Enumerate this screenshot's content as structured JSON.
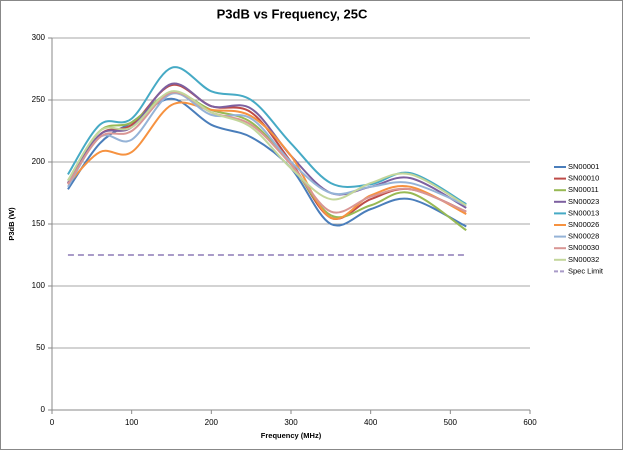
{
  "chart_data": {
    "type": "line",
    "title": "P3dB vs Frequency, 25C",
    "x_label": "Frequency (MHz)",
    "y_label": "P3dB (W)",
    "xlim": [
      0,
      600
    ],
    "xticks": [
      0,
      100,
      200,
      300,
      400,
      500,
      600
    ],
    "ylim": [
      0,
      300
    ],
    "yticks": [
      0,
      50,
      100,
      150,
      200,
      250,
      300
    ],
    "grid": true,
    "legend": "right",
    "smooth": true,
    "series": [
      {
        "name": "SN00001",
        "color": "#4A7EBB",
        "x": [
          20,
          60,
          100,
          150,
          200,
          250,
          300,
          350,
          400,
          450,
          520
        ],
        "values": [
          178,
          215,
          232,
          251,
          230,
          220,
          195,
          150,
          162,
          170,
          148
        ]
      },
      {
        "name": "SN00010",
        "color": "#BE4B48",
        "x": [
          20,
          60,
          100,
          150,
          200,
          250,
          300,
          350,
          400,
          450,
          520
        ],
        "values": [
          183,
          222,
          230,
          262,
          245,
          240,
          200,
          155,
          170,
          178,
          160
        ]
      },
      {
        "name": "SN00011",
        "color": "#98B954",
        "x": [
          20,
          60,
          100,
          150,
          200,
          250,
          300,
          350,
          400,
          450,
          520
        ],
        "values": [
          185,
          225,
          232,
          256,
          242,
          232,
          198,
          157,
          165,
          175,
          145
        ]
      },
      {
        "name": "SN00023",
        "color": "#7D60A0",
        "x": [
          20,
          60,
          100,
          150,
          200,
          250,
          300,
          350,
          400,
          450,
          520
        ],
        "values": [
          183,
          222,
          228,
          263,
          245,
          243,
          205,
          175,
          180,
          187,
          163
        ]
      },
      {
        "name": "SN00013",
        "color": "#46AAC5",
        "x": [
          20,
          60,
          100,
          150,
          200,
          250,
          300,
          350,
          400,
          450,
          520
        ],
        "values": [
          190,
          230,
          235,
          276,
          257,
          250,
          215,
          183,
          182,
          191,
          166
        ]
      },
      {
        "name": "SN00026",
        "color": "#F69240",
        "x": [
          20,
          60,
          100,
          150,
          200,
          250,
          300,
          350,
          400,
          450,
          520
        ],
        "values": [
          182,
          208,
          208,
          246,
          242,
          237,
          205,
          155,
          173,
          180,
          158
        ]
      },
      {
        "name": "SN00028",
        "color": "#95B3D7",
        "x": [
          20,
          60,
          100,
          150,
          200,
          250,
          300,
          350,
          400,
          450,
          520
        ],
        "values": [
          180,
          220,
          218,
          255,
          238,
          235,
          200,
          175,
          180,
          183,
          165
        ]
      },
      {
        "name": "SN00030",
        "color": "#D99694",
        "x": [
          20,
          60,
          100,
          150,
          200,
          250,
          300,
          350,
          400,
          450,
          520
        ],
        "values": [
          182,
          220,
          225,
          256,
          240,
          230,
          198,
          160,
          172,
          178,
          160
        ]
      },
      {
        "name": "SN00032",
        "color": "#C3D69B",
        "x": [
          20,
          60,
          100,
          150,
          200,
          250,
          300,
          350,
          400,
          450,
          520
        ],
        "values": [
          185,
          225,
          228,
          257,
          240,
          228,
          195,
          170,
          183,
          190,
          165
        ]
      },
      {
        "name": "Spec Limit",
        "color": "#A99BC8",
        "dashed": true,
        "x": [
          20,
          520
        ],
        "values": [
          125,
          125
        ]
      }
    ]
  }
}
